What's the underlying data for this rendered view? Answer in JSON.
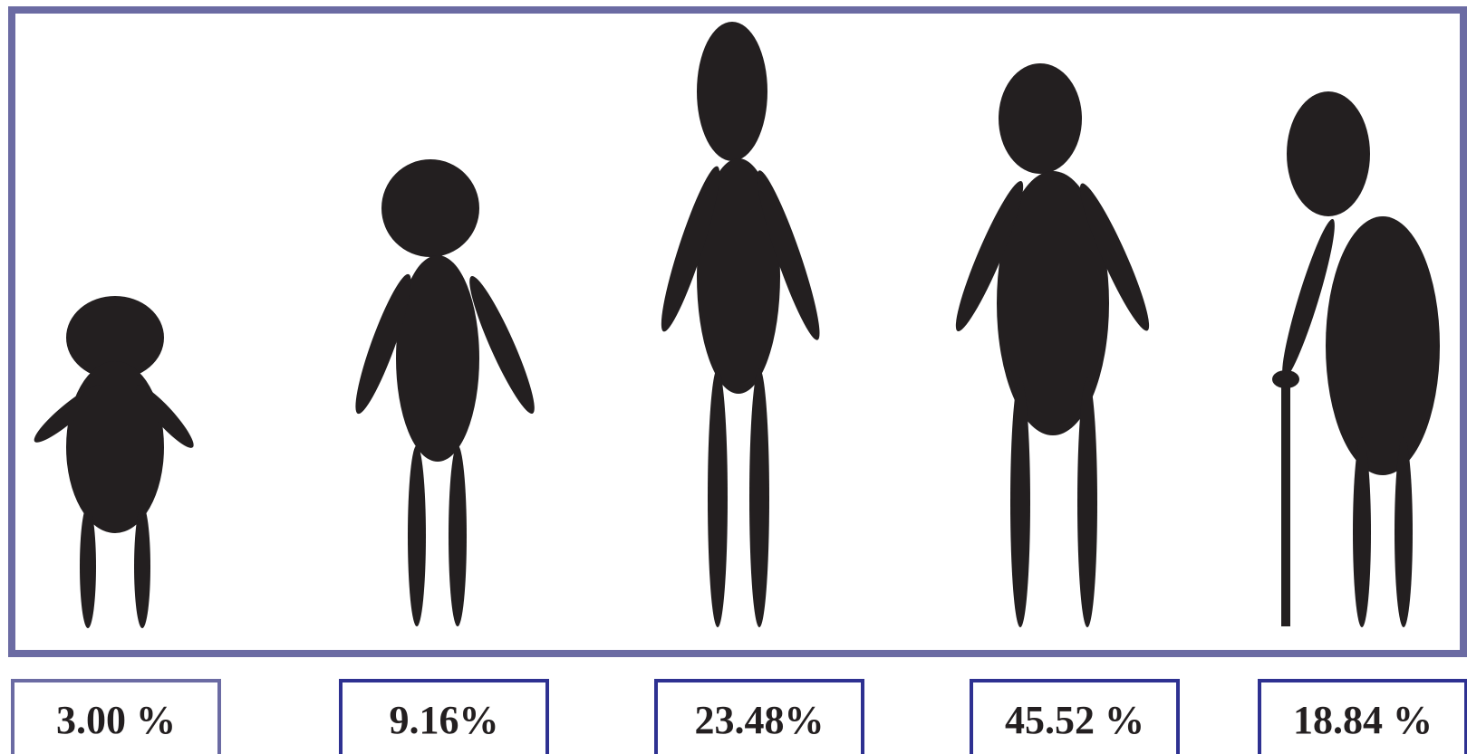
{
  "colors": {
    "frame": "#6b6ba3",
    "label_box": "#2e3191",
    "label_box_first": "#6b6ba3",
    "figure": "#231f20",
    "background": "#ffffff"
  },
  "figures": [
    {
      "icon": "baby-figure-icon",
      "share": "3.00 %"
    },
    {
      "icon": "child-figure-icon",
      "share": "9.16%"
    },
    {
      "icon": "young-adult-figure-icon",
      "share": "23.48%"
    },
    {
      "icon": "adult-figure-icon",
      "share": "45.52 %"
    },
    {
      "icon": "elderly-figure-with-cane-icon",
      "share": "18.84 %"
    }
  ]
}
